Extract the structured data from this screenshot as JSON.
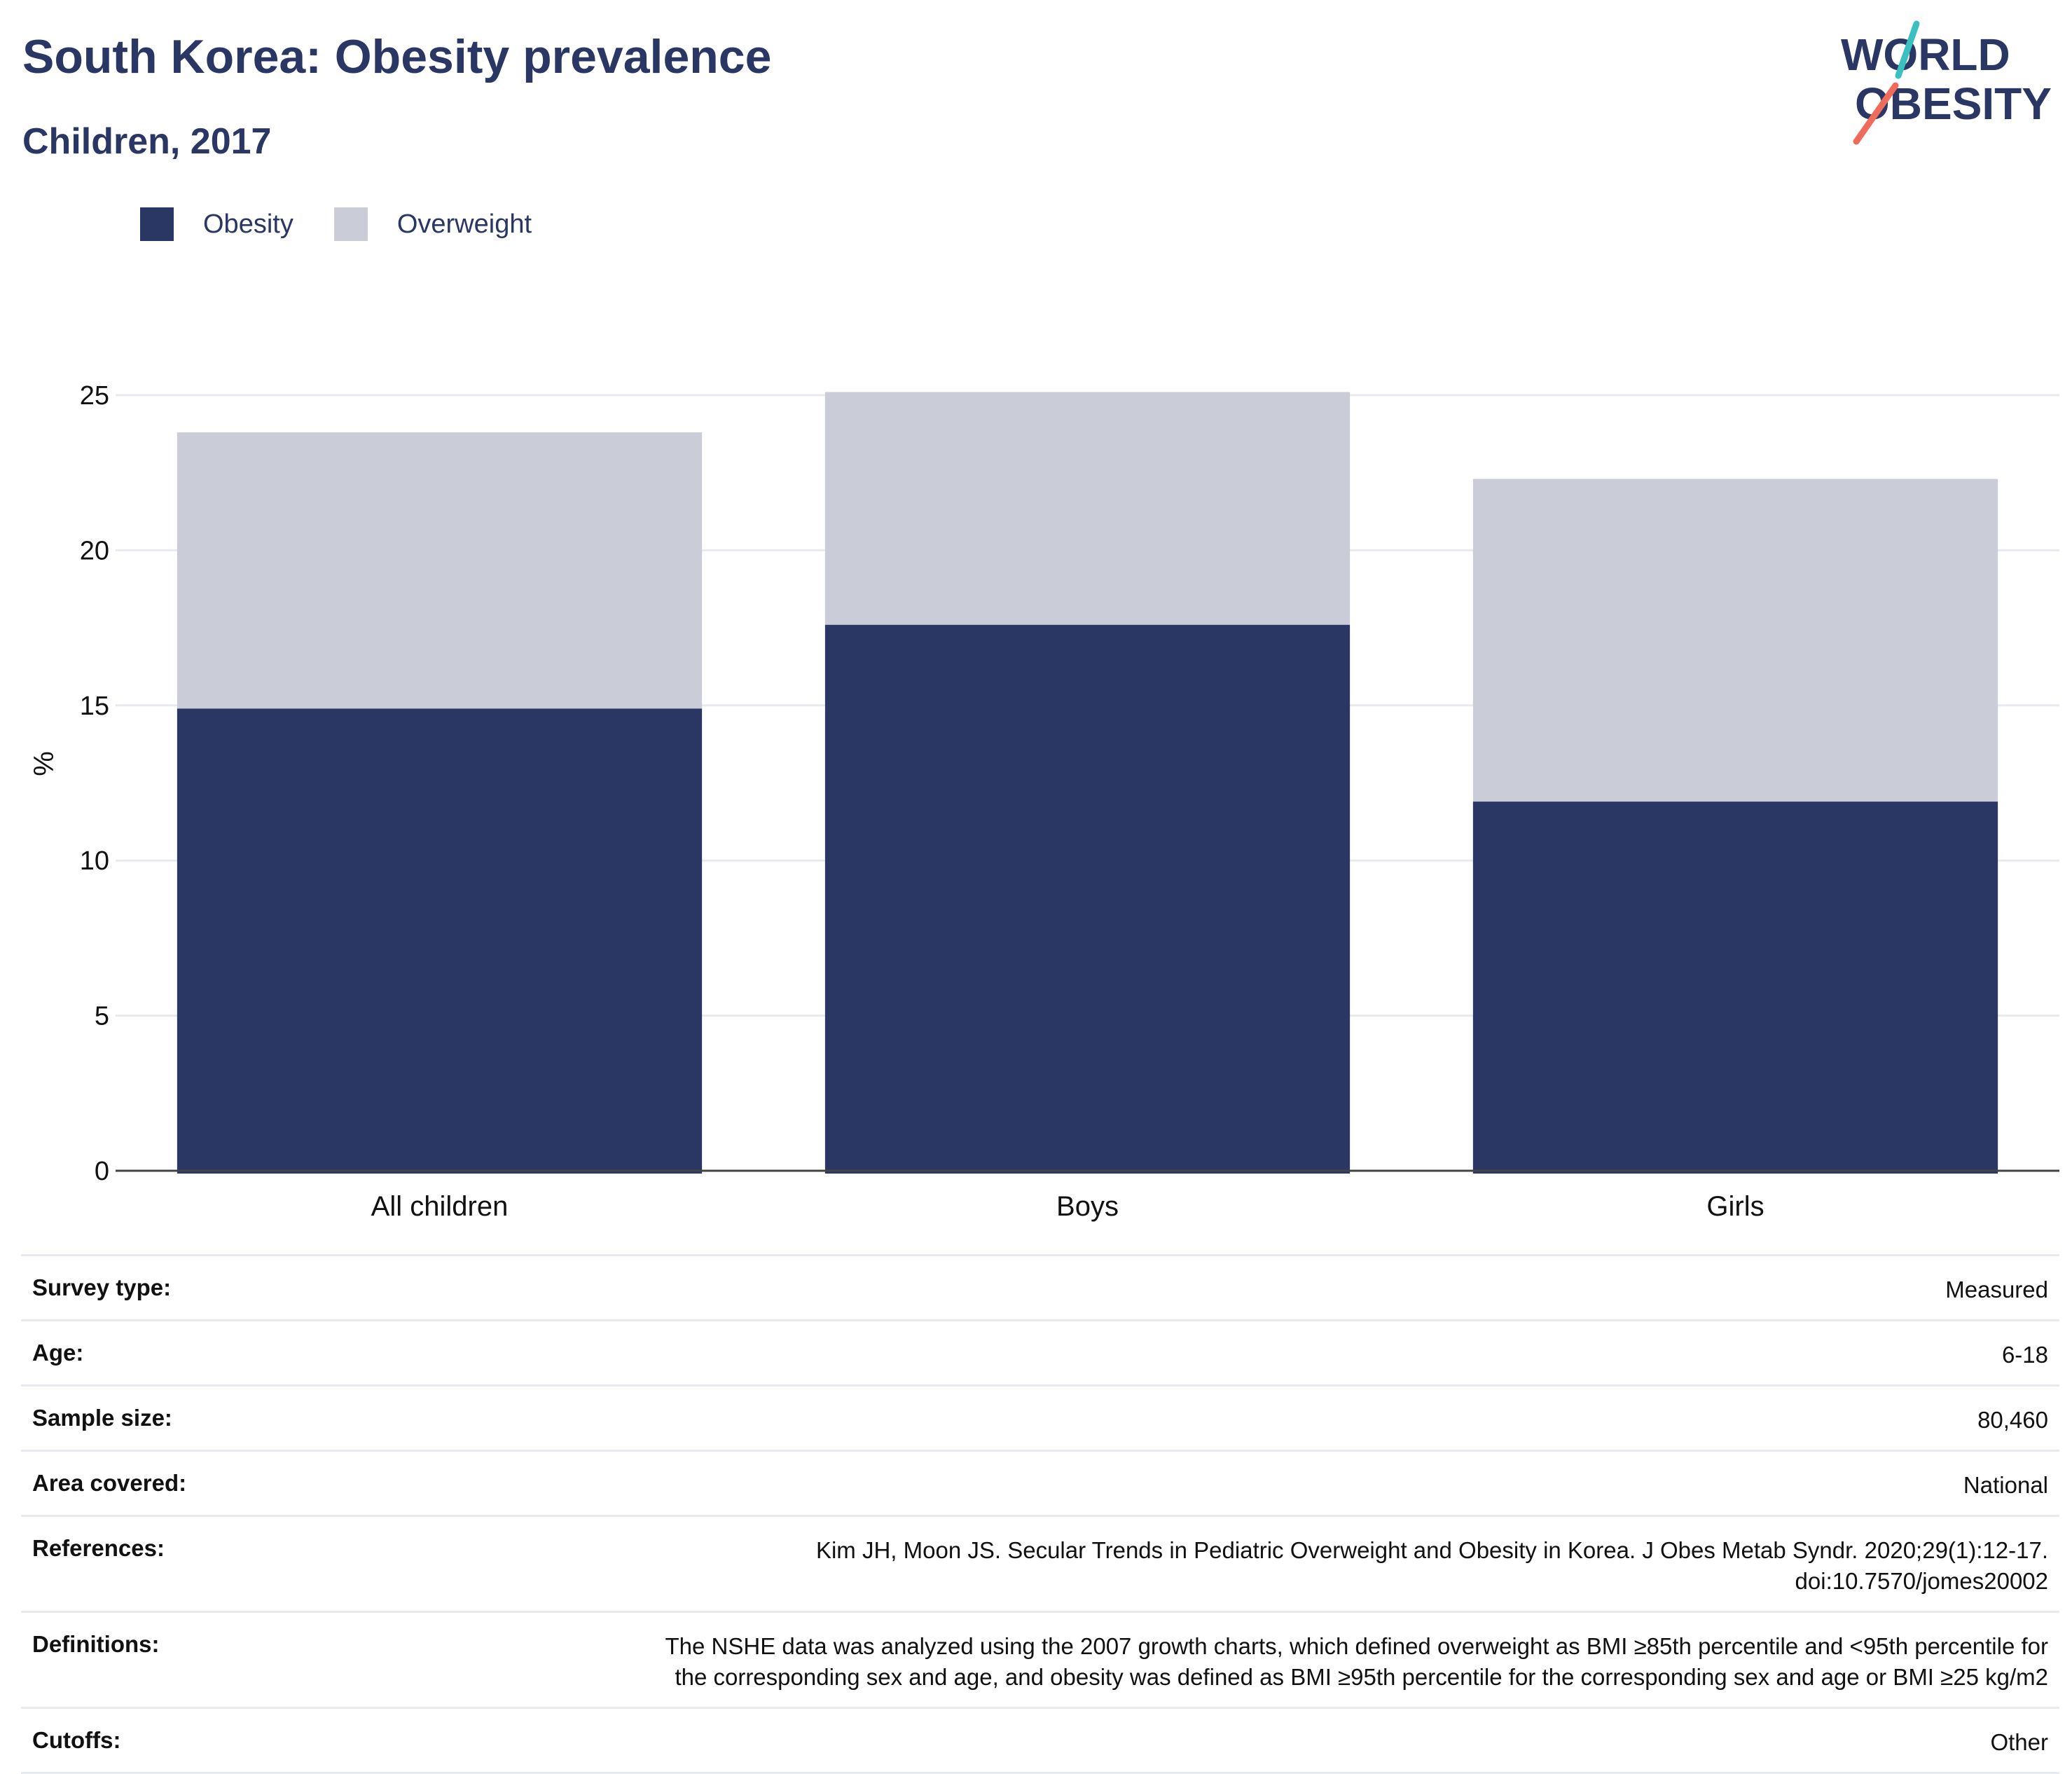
{
  "header": {
    "title": "South Korea: Obesity prevalence",
    "subtitle": "Children, 2017"
  },
  "logo": {
    "line1": "WORLD",
    "line2": "OBESITY"
  },
  "chart_data": {
    "type": "bar",
    "stacked": true,
    "categories": [
      "All children",
      "Boys",
      "Girls"
    ],
    "series": [
      {
        "name": "Obesity",
        "values": [
          14.9,
          17.6,
          11.9
        ],
        "color": "#2a3663"
      },
      {
        "name": "Overweight",
        "values": [
          8.9,
          7.5,
          10.4
        ],
        "color": "#caccd7"
      }
    ],
    "ylabel": "%",
    "ylim": [
      0,
      25
    ],
    "yticks": [
      0,
      5,
      10,
      15,
      20,
      25
    ],
    "grid": true,
    "legend": "top-left"
  },
  "info": {
    "rows": [
      {
        "label": "Survey type:",
        "value": "Measured"
      },
      {
        "label": "Age:",
        "value": "6-18"
      },
      {
        "label": "Sample size:",
        "value": "80,460"
      },
      {
        "label": "Area covered:",
        "value": "National"
      },
      {
        "label": "References:",
        "value_lines": [
          "Kim JH, Moon JS. Secular Trends in Pediatric Overweight and Obesity in Korea. J Obes Metab Syndr. 2020;29(1):12-17.",
          "doi:10.7570/jomes20002"
        ]
      },
      {
        "label": "Definitions:",
        "value_lines": [
          "The NSHE data was analyzed using the 2007 growth charts, which defined overweight as BMI ≥85th percentile and <95th percentile for",
          "the corresponding sex and age, and obesity was defined as BMI ≥95th percentile for the corresponding sex and age or BMI ≥25 kg/m2"
        ]
      },
      {
        "label": "Cutoffs:",
        "value": "Other"
      }
    ]
  }
}
